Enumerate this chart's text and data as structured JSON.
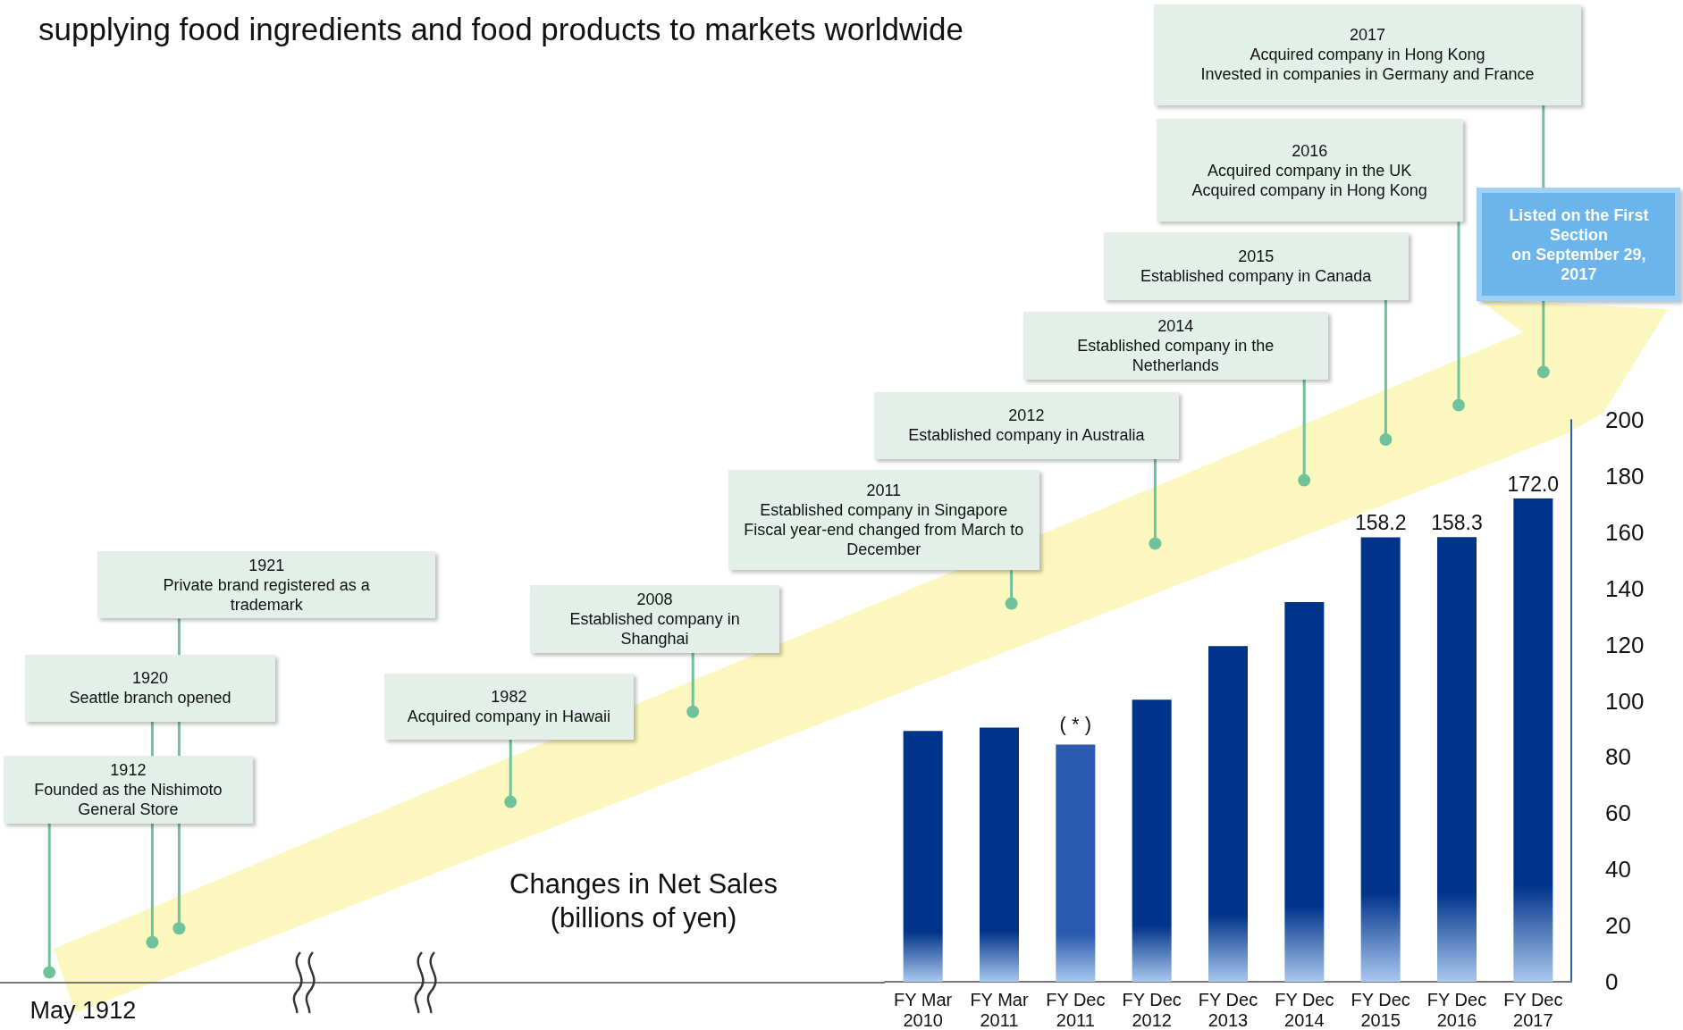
{
  "chart_data": {
    "type": "bar",
    "title": "Changes in Net Sales\n(billions of yen)",
    "subtitle": "supplying food ingredients and food products to markets worldwide",
    "categories": [
      "FY Mar 2010",
      "FY Mar 2011",
      "FY Dec 2011",
      "FY Dec 2012",
      "FY Dec 2013",
      "FY Dec 2014",
      "FY Dec 2015",
      "FY Dec 2016",
      "FY Dec 2017"
    ],
    "values": [
      89.3,
      90.5,
      84.4,
      100.4,
      119.5,
      135.1,
      158.2,
      158.3,
      172.0
    ],
    "value_labels": [
      null,
      null,
      null,
      null,
      null,
      null,
      "158.2",
      "158.3",
      "172.0"
    ],
    "colors": [
      "#00338a",
      "#00338a",
      "#2a5bb0",
      "#00338a",
      "#00338a",
      "#00338a",
      "#00338a",
      "#00338a",
      "#00338a"
    ],
    "ylim": [
      0,
      200
    ],
    "yticks": [
      0,
      20,
      40,
      60,
      80,
      100,
      120,
      140,
      160,
      180,
      200
    ],
    "grid": false,
    "annotations": [
      "1912\nFounded as the Nishimoto\nGeneral Store",
      "1920\nSeattle branch opened",
      "1921\nPrivate brand registered as a\ntrademark",
      "1982\nAcquired company in Hawaii",
      "2008\nEstablished company in\nShanghai",
      "2011\nEstablished company in Singapore\nFiscal year-end changed from March to\nDecember",
      "2012\nEstablished company in Australia",
      "2014\nEstablished company in the\nNetherlands",
      "2015\nEstablished company in Canada",
      "2016\nAcquired company in the UK\nAcquired company in Hong Kong",
      "2017\nAcquired company in Hong Kong\nInvested in companies in Germany and France",
      "Listed on the First\nSection\non September 29,\n2017",
      "May 1912",
      {
        "text": "( * )",
        "x": "FY Dec 2011",
        "y": 84.4
      }
    ]
  }
}
